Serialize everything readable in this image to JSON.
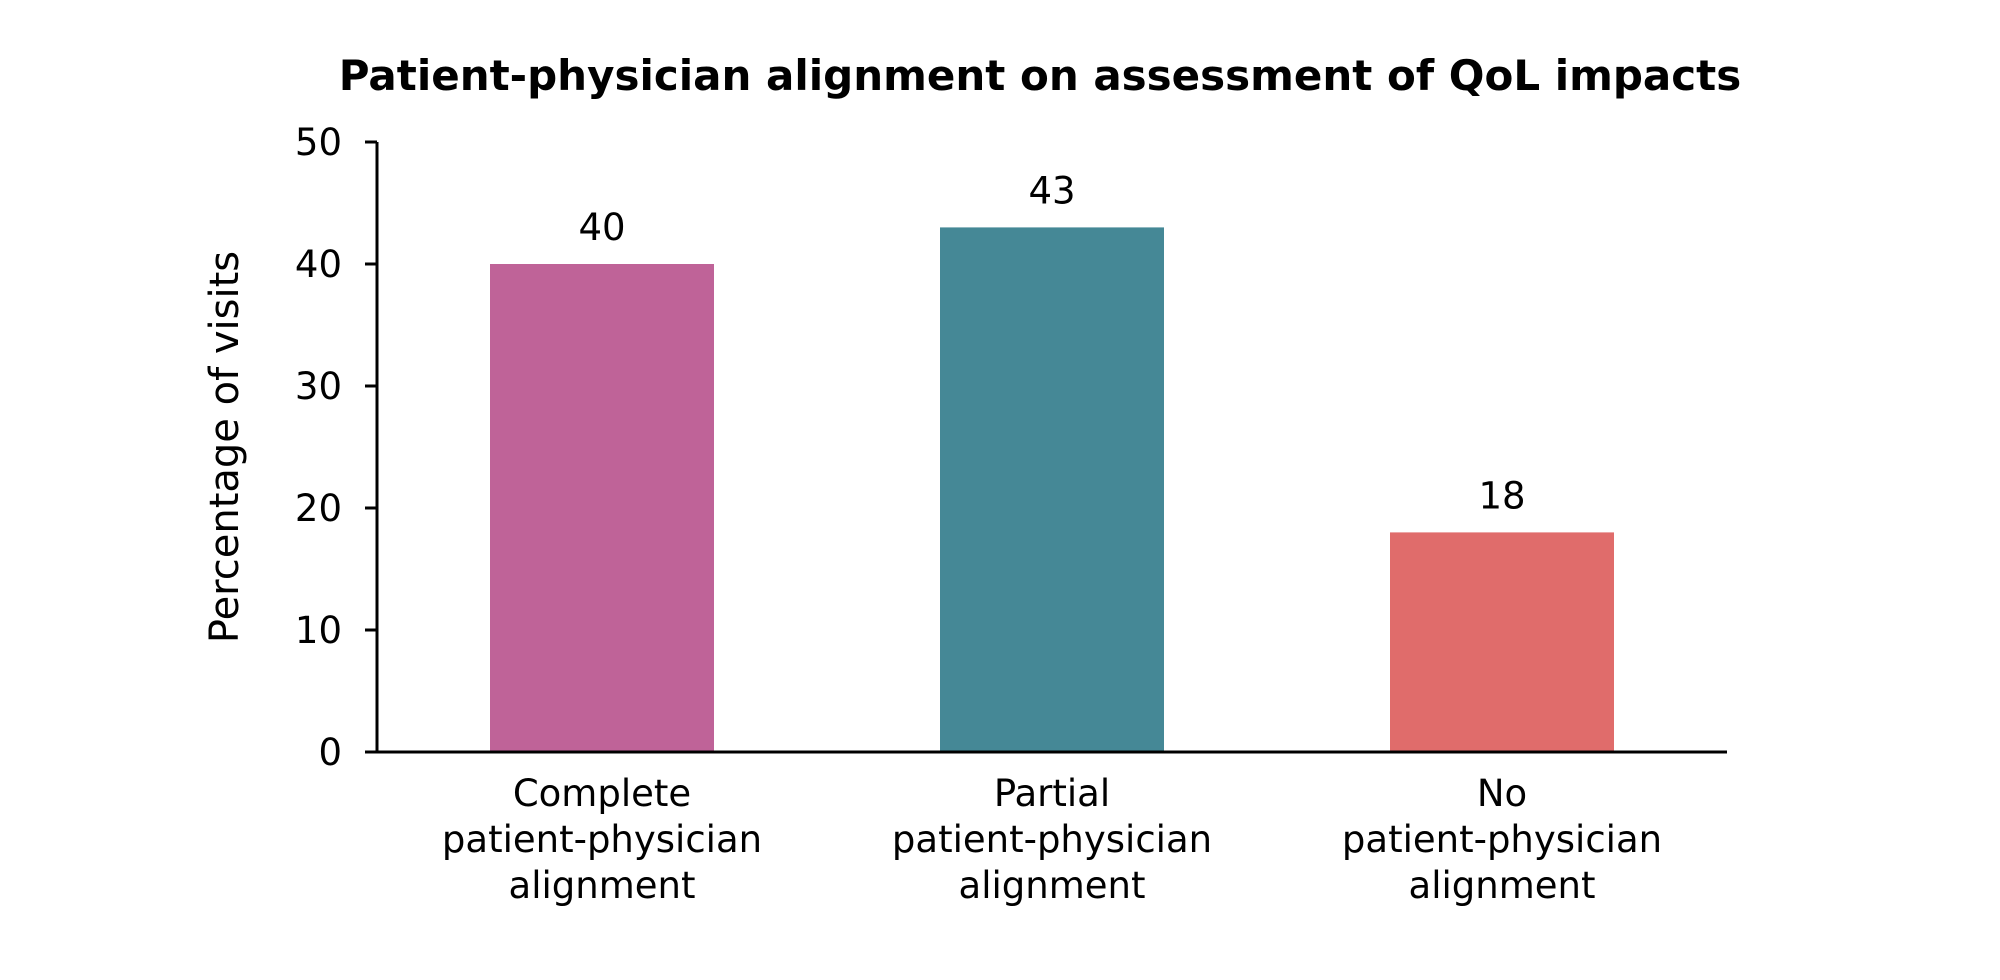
{
  "chart_data": {
    "type": "bar",
    "title": "Patient-physician alignment on assessment of QoL impacts",
    "xlabel": "",
    "ylabel": "Percentage of visits",
    "ylim": [
      0,
      50
    ],
    "yticks": [
      0,
      10,
      20,
      30,
      40,
      50
    ],
    "grid": false,
    "categories": [
      [
        "Complete",
        "patient-physician",
        "alignment"
      ],
      [
        "Partial",
        "patient-physician",
        "alignment"
      ],
      [
        "No",
        "patient-physician",
        "alignment"
      ]
    ],
    "values": [
      40,
      43,
      18
    ],
    "data_labels": [
      "40",
      "43",
      "18"
    ],
    "colors": [
      "#BF6398",
      "#458896",
      "#E06C6B"
    ]
  }
}
